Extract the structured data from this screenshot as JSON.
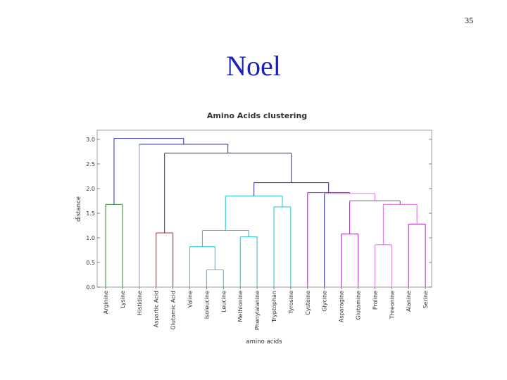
{
  "slide": {
    "page_number": "35",
    "title": "Noel"
  },
  "chart_data": {
    "type": "dendrogram",
    "title": "Amino Acids clustering",
    "xlabel": "amino acids",
    "ylabel": "distance",
    "ylim": [
      0,
      3.2
    ],
    "yticks": [
      0.0,
      0.5,
      1.0,
      1.5,
      2.0,
      2.5,
      3.0
    ],
    "ytick_labels": [
      "0.0",
      "0.5",
      "1.0",
      "1.5",
      "2.0",
      "2.5",
      "3.0"
    ],
    "leaves": [
      "Arginine",
      "Lysine",
      "Histidine",
      "Aspartic Acid",
      "Glutamic Acid",
      "Valine",
      "Isoleucine",
      "Leucine",
      "Methionine",
      "Phenylalanine",
      "Tryptophan",
      "Tyrosine",
      "Cysteine",
      "Glycine",
      "Asparagine",
      "Glutamine",
      "Proline",
      "Threonine",
      "Alanine",
      "Serine"
    ],
    "merges": [
      {
        "left": "leaf:Arginine",
        "right": "leaf:Lysine",
        "height": 1.68,
        "color": "#3a9a3a"
      },
      {
        "left": "leaf:Aspartic Acid",
        "right": "leaf:Glutamic Acid",
        "height": 1.1,
        "color": "#c0302a"
      },
      {
        "left": "leaf:Isoleucine",
        "right": "leaf:Leucine",
        "height": 0.35,
        "color": "#33c6d6"
      },
      {
        "left": "leaf:Valine",
        "right": "node:2",
        "height": 0.82,
        "color": "#33c6d6"
      },
      {
        "left": "leaf:Methionine",
        "right": "leaf:Phenylalanine",
        "height": 1.02,
        "color": "#33c6d6"
      },
      {
        "left": "node:3",
        "right": "node:4",
        "height": 1.15,
        "color": "#33c6d6"
      },
      {
        "left": "leaf:Tryptophan",
        "right": "leaf:Tyrosine",
        "height": 1.63,
        "color": "#33c6d6"
      },
      {
        "left": "node:5",
        "right": "node:6",
        "height": 1.85,
        "color": "#33c6d6"
      },
      {
        "left": "leaf:Asparagine",
        "right": "leaf:Glutamine",
        "height": 1.08,
        "color": "#a63ab6"
      },
      {
        "left": "leaf:Alanine",
        "right": "leaf:Serine",
        "height": 1.28,
        "color": "#a63ab6"
      },
      {
        "left": "leaf:Proline",
        "right": "leaf:Threonine",
        "height": 0.86,
        "color": "#e07ae6"
      },
      {
        "left": "node:10",
        "right": "node:9",
        "height": 1.68,
        "color": "#e07ae6"
      },
      {
        "left": "node:8",
        "right": "node:11",
        "height": 1.75,
        "color": "#a63ab6"
      },
      {
        "left": "leaf:Glycine",
        "right": "node:12",
        "height": 1.9,
        "color": "#e07ae6"
      },
      {
        "left": "leaf:Cysteine",
        "right": "node:13",
        "height": 1.92,
        "color": "#a63ab6"
      },
      {
        "left": "node:7",
        "right": "node:14",
        "height": 2.12,
        "color": "#3c3caa"
      },
      {
        "left": "node:1",
        "right": "node:15",
        "height": 2.72,
        "color": "#3c3caa"
      },
      {
        "left": "leaf:Histidine",
        "right": "node:16",
        "height": 2.9,
        "color": "#3c3caa"
      },
      {
        "left": "node:0",
        "right": "node:17",
        "height": 3.02,
        "color": "#3c3caa"
      }
    ],
    "leaf_stems": {
      "Histidine": "#9a9ad8",
      "Glycine": "#3c3caa"
    },
    "colors": {
      "frame": "#888888",
      "default_link": "#3c3caa"
    }
  }
}
